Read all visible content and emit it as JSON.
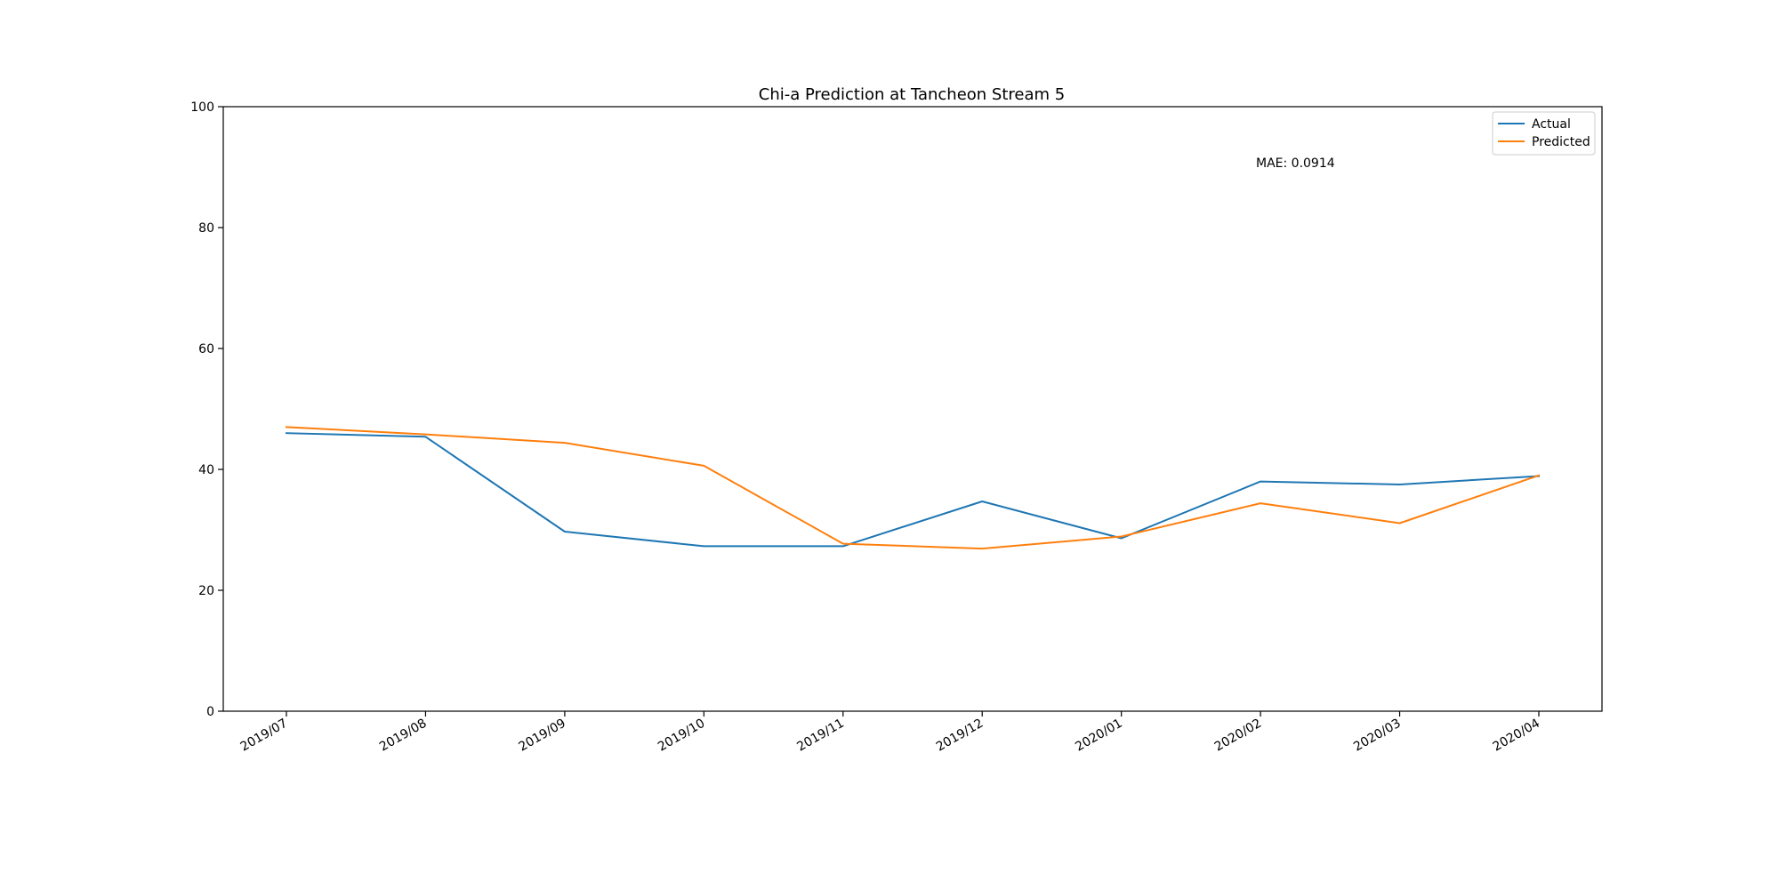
{
  "chart_data": {
    "type": "line",
    "title": "Chi-a Prediction at Tancheon Stream 5",
    "xlabel": "",
    "ylabel": "",
    "categories": [
      "2019/07",
      "2019/08",
      "2019/09",
      "2019/10",
      "2019/11",
      "2019/12",
      "2020/01",
      "2020/02",
      "2020/03",
      "2020/04"
    ],
    "ylim": [
      0,
      100
    ],
    "yticks": [
      "0",
      "20",
      "40",
      "60",
      "80",
      "100"
    ],
    "series": [
      {
        "name": "Actual",
        "color": "#1f77b4",
        "values": [
          46.0,
          45.4,
          29.7,
          27.3,
          27.3,
          34.7,
          28.6,
          38.0,
          37.5,
          38.9
        ]
      },
      {
        "name": "Predicted",
        "color": "#ff7f0e",
        "values": [
          47.0,
          45.8,
          44.4,
          40.6,
          27.7,
          26.9,
          28.9,
          34.4,
          31.1,
          39.0
        ]
      }
    ],
    "annotation": "MAE: 0.0914",
    "legend_position": "top-right",
    "grid": false
  }
}
